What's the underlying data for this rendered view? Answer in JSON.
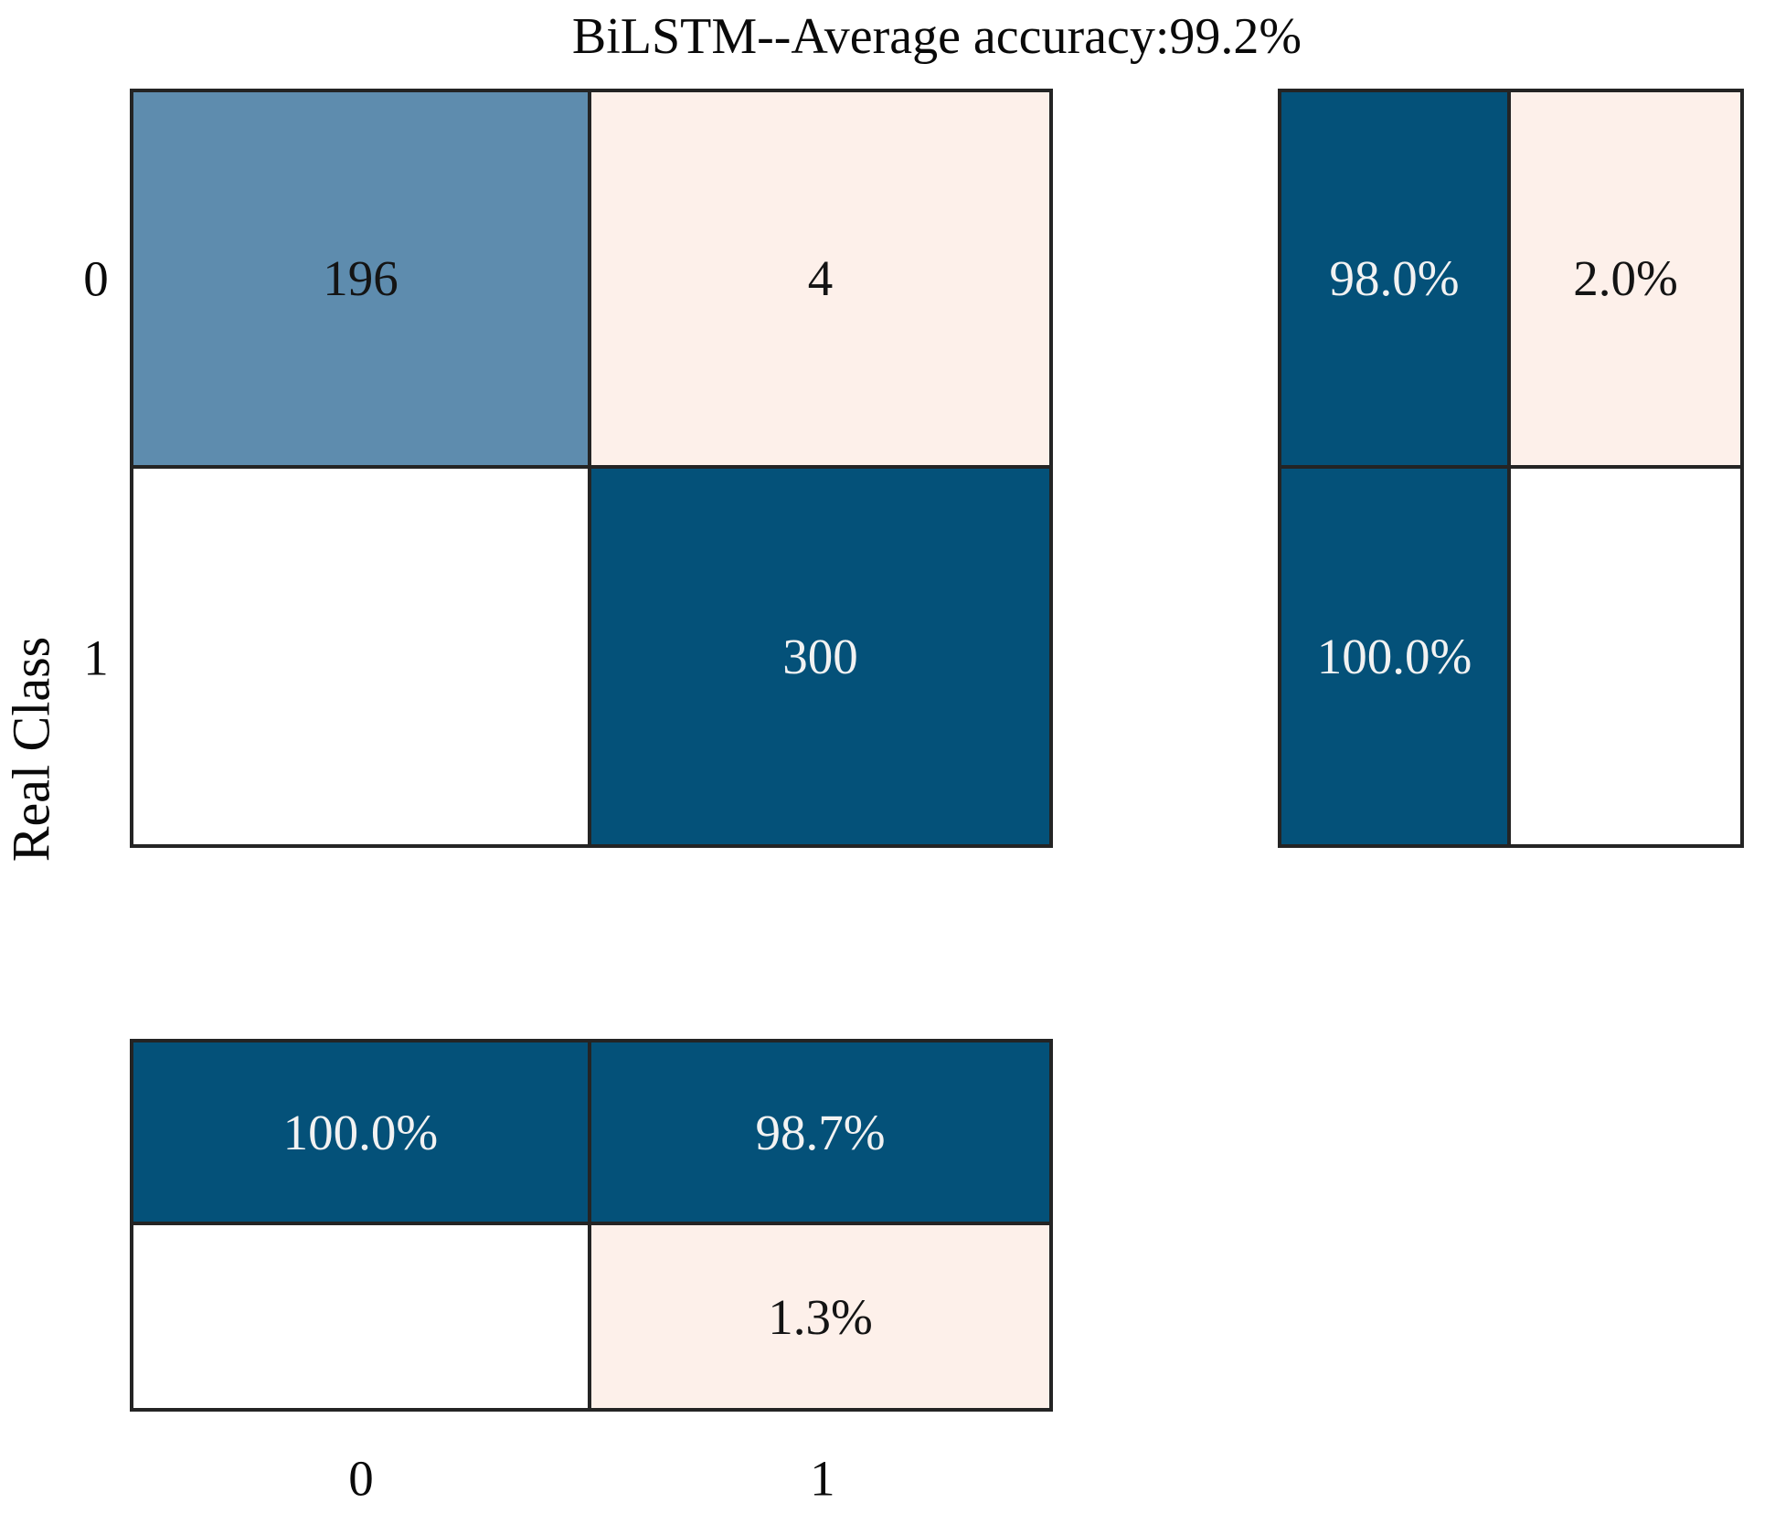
{
  "title": "BiLSTM--Average accuracy:99.2%",
  "palette": {
    "dark_blue": "#045179",
    "steel_blue": "#5e8cae",
    "light_pink": "#fdf0ea",
    "white": "#ffffff",
    "text_dark": "#141414",
    "text_light": "#f2f2f2"
  },
  "axes": {
    "y_label": "Real Class",
    "y_ticks": [
      "0",
      "1"
    ],
    "x_ticks": [
      "0",
      "1"
    ]
  },
  "chart_data": {
    "type": "heatmap",
    "title": "BiLSTM--Average accuracy:99.2%",
    "model": "BiLSTM",
    "average_accuracy_percent": 99.2,
    "classes": [
      "0",
      "1"
    ],
    "ylabel": "Real Class",
    "confusion_matrix": {
      "rows": "real class (0 top, 1 bottom)",
      "cols": "predicted class (0 left, 1 right)",
      "values": [
        [
          196,
          4
        ],
        [
          null,
          300
        ]
      ]
    },
    "row_percentages": [
      [
        98.0,
        2.0
      ],
      [
        100.0,
        null
      ]
    ],
    "column_percentages": [
      [
        100.0,
        98.7
      ],
      [
        null,
        1.3
      ]
    ],
    "legend_position": "none",
    "grid": false
  },
  "panels": {
    "counts": {
      "cells": [
        {
          "name": "real0-pred0",
          "text": "196",
          "bg": "steel_blue",
          "fg": "text_dark"
        },
        {
          "name": "real0-pred1",
          "text": "4",
          "bg": "light_pink",
          "fg": "text_dark"
        },
        {
          "name": "real1-pred0",
          "text": "",
          "bg": "white",
          "fg": "text_dark"
        },
        {
          "name": "real1-pred1",
          "text": "300",
          "bg": "dark_blue",
          "fg": "text_light"
        }
      ]
    },
    "row_percent": {
      "cells": [
        {
          "name": "row0-correct",
          "text": "98.0%",
          "bg": "dark_blue",
          "fg": "text_light"
        },
        {
          "name": "row0-error",
          "text": "2.0%",
          "bg": "light_pink",
          "fg": "text_dark"
        },
        {
          "name": "row1-correct",
          "text": "100.0%",
          "bg": "dark_blue",
          "fg": "text_light"
        },
        {
          "name": "row1-error",
          "text": "",
          "bg": "white",
          "fg": "text_dark"
        }
      ]
    },
    "col_percent": {
      "cells": [
        {
          "name": "col0-correct",
          "text": "100.0%",
          "bg": "dark_blue",
          "fg": "text_light"
        },
        {
          "name": "col1-correct",
          "text": "98.7%",
          "bg": "dark_blue",
          "fg": "text_light"
        },
        {
          "name": "col0-error",
          "text": "",
          "bg": "white",
          "fg": "text_dark"
        },
        {
          "name": "col1-error",
          "text": "1.3%",
          "bg": "light_pink",
          "fg": "text_dark"
        }
      ]
    }
  }
}
